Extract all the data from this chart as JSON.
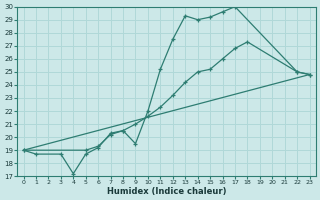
{
  "xlabel": "Humidex (Indice chaleur)",
  "xlim": [
    -0.5,
    23.5
  ],
  "ylim": [
    17,
    30
  ],
  "yticks": [
    17,
    18,
    19,
    20,
    21,
    22,
    23,
    24,
    25,
    26,
    27,
    28,
    29,
    30
  ],
  "xticks": [
    0,
    1,
    2,
    3,
    4,
    5,
    6,
    7,
    8,
    9,
    10,
    11,
    12,
    13,
    14,
    15,
    16,
    17,
    18,
    19,
    20,
    21,
    22,
    23
  ],
  "bg_color": "#cce8e8",
  "line_color": "#2e7d72",
  "grid_color": "#b0d8d8",
  "line1": {
    "x": [
      0,
      1,
      3,
      4,
      5,
      6,
      7,
      8,
      9,
      10,
      11,
      12,
      13,
      14,
      15,
      16,
      17,
      22,
      23
    ],
    "y": [
      19,
      18.7,
      18.7,
      17.2,
      18.7,
      19.2,
      20.3,
      20.5,
      19.5,
      22.0,
      25.2,
      27.5,
      29.3,
      29.0,
      29.2,
      29.6,
      30.0,
      25.0,
      24.8
    ]
  },
  "line2": {
    "x": [
      0,
      5,
      6,
      7,
      8,
      9,
      10,
      11,
      12,
      13,
      14,
      15,
      16,
      17,
      18,
      22,
      23
    ],
    "y": [
      19,
      19.0,
      19.3,
      20.2,
      20.5,
      21.0,
      21.6,
      22.3,
      23.2,
      24.2,
      25.0,
      25.2,
      26.0,
      26.8,
      27.3,
      25.0,
      24.8
    ]
  },
  "line3": {
    "x": [
      0,
      23
    ],
    "y": [
      19,
      24.8
    ]
  }
}
